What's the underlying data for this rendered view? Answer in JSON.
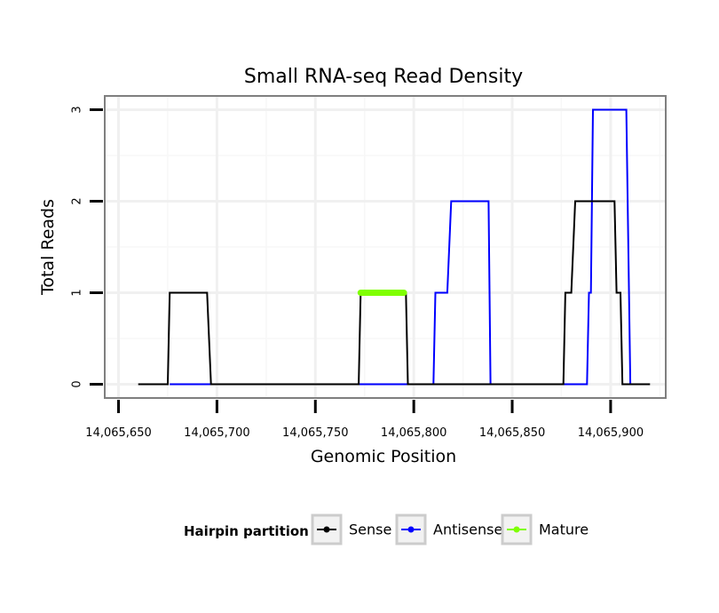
{
  "chart_data": {
    "type": "line",
    "title": "Small RNA-seq Read Density",
    "xlabel": "Genomic Position",
    "ylabel": "Total Reads",
    "xlim": [
      14065643,
      14065928
    ],
    "ylim": [
      -0.15,
      3.15
    ],
    "xticks": [
      14065650,
      14065700,
      14065750,
      14065800,
      14065850,
      14065900
    ],
    "xtick_labels": [
      "14,065,650",
      "14,065,700",
      "14,065,750",
      "14,065,800",
      "14,065,850",
      "14,065,900"
    ],
    "yticks": [
      0,
      1,
      2,
      3
    ],
    "ytick_labels": [
      "0",
      "1",
      "2",
      "3"
    ],
    "grid": true,
    "series": [
      {
        "name": "Sense",
        "color": "#000000",
        "x": [
          14065660,
          14065675,
          14065676,
          14065695,
          14065697,
          14065772,
          14065773,
          14065796,
          14065797,
          14065876,
          14065877,
          14065880,
          14065882,
          14065902,
          14065903,
          14065905,
          14065906,
          14065920
        ],
        "y": [
          0,
          0,
          1,
          1,
          0,
          0,
          1,
          1,
          0,
          0,
          1,
          1,
          2,
          2,
          1,
          1,
          0,
          0
        ]
      },
      {
        "name": "Antisense",
        "color": "#0000ff",
        "x": [
          14065676,
          14065810,
          14065811,
          14065817,
          14065819,
          14065838,
          14065839,
          14065888,
          14065889,
          14065890,
          14065891,
          14065908,
          14065910,
          14065912
        ],
        "y": [
          0,
          0,
          1,
          1,
          2,
          2,
          0,
          0,
          1,
          1,
          3,
          3,
          0,
          0
        ]
      },
      {
        "name": "Mature",
        "color": "#7fff00",
        "x": [
          14065773,
          14065795
        ],
        "y": [
          1,
          1
        ]
      }
    ],
    "legend": {
      "title": "Hairpin partition",
      "position": "bottom",
      "entries": [
        "Sense",
        "Antisense",
        "Mature"
      ]
    }
  }
}
